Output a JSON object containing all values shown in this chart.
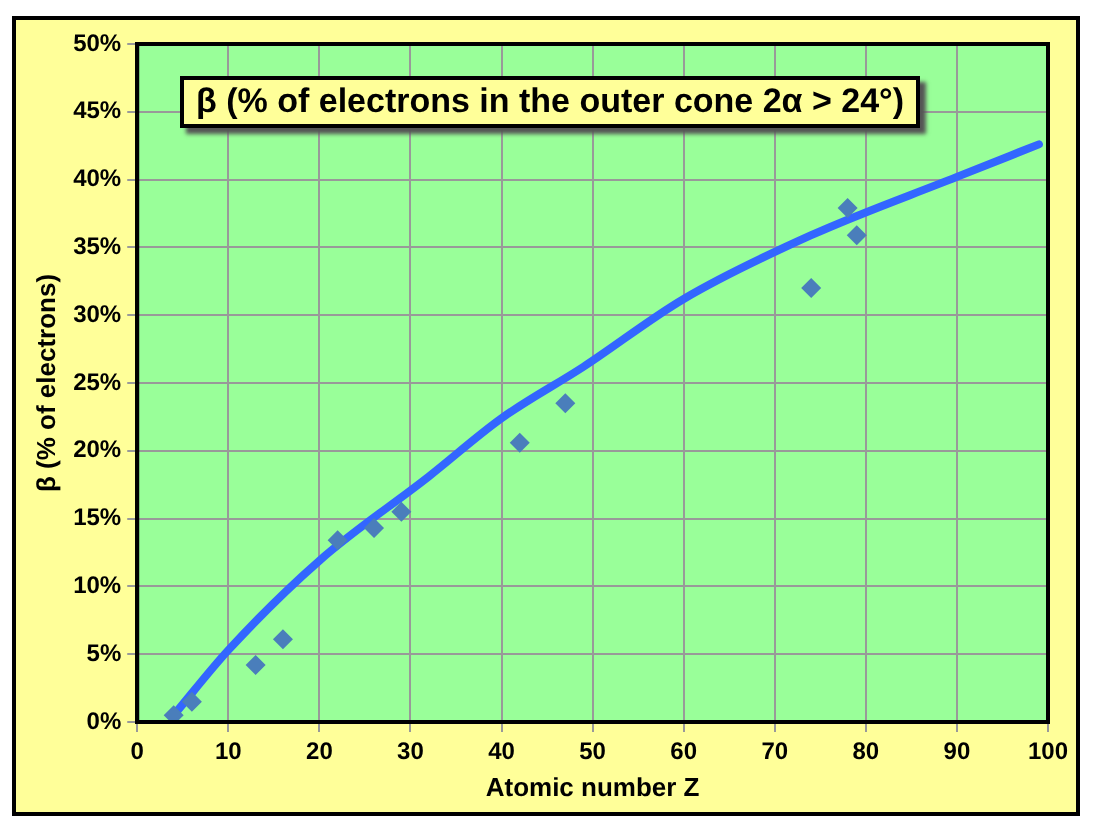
{
  "chart_data": {
    "type": "scatter",
    "title": "β (% of electrons in the outer cone 2α > 24°)",
    "xlabel": "Atomic number Z",
    "ylabel": "β (% of electrons)",
    "xlim": [
      0,
      100
    ],
    "xticks": [
      0,
      10,
      20,
      30,
      40,
      50,
      60,
      70,
      80,
      90,
      100
    ],
    "ylim": [
      0,
      50
    ],
    "yticks": [
      {
        "value": 0,
        "label": "0%"
      },
      {
        "value": 5,
        "label": "5%"
      },
      {
        "value": 10,
        "label": "10%"
      },
      {
        "value": 15,
        "label": "15%"
      },
      {
        "value": 20,
        "label": "20%"
      },
      {
        "value": 25,
        "label": "25%"
      },
      {
        "value": 30,
        "label": "30%"
      },
      {
        "value": 35,
        "label": "35%"
      },
      {
        "value": 40,
        "label": "40%"
      },
      {
        "value": 45,
        "label": "45%"
      },
      {
        "value": 50,
        "label": "50%"
      }
    ],
    "grid": true,
    "legend": false,
    "series": [
      {
        "marker": "diamond",
        "color": "#4a7ebb",
        "x": [
          4,
          6,
          13,
          16,
          22,
          26,
          29,
          42,
          47,
          74,
          78,
          79
        ],
        "values": [
          0.5,
          1.5,
          4.2,
          6.1,
          13.4,
          14.3,
          15.5,
          20.6,
          23.5,
          32.0,
          37.9,
          35.9
        ]
      },
      {
        "type": "line",
        "marker": "none",
        "line_style": "solid",
        "color": "#3366ff",
        "x": [
          4,
          10,
          20,
          32,
          40,
          49,
          60,
          74,
          90,
          99
        ],
        "values": [
          0.5,
          5.3,
          11.9,
          18.1,
          22.4,
          26.2,
          31.2,
          35.9,
          40.2,
          42.6
        ]
      }
    ]
  }
}
